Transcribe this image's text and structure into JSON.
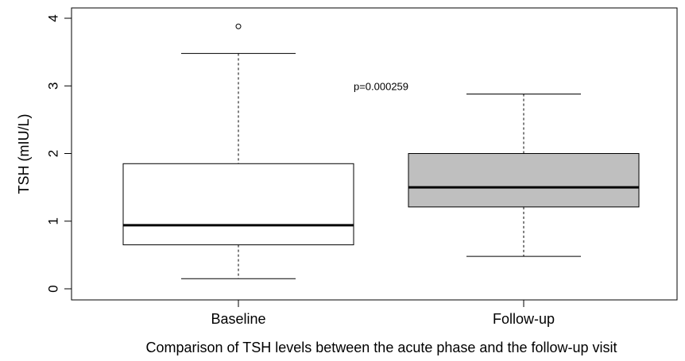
{
  "chart_data": {
    "type": "boxplot",
    "title": "",
    "xlabel": "Comparison of TSH levels between the acute phase and the follow-up visit",
    "ylabel": "TSH (mIU/L)",
    "ylim": [
      0,
      4
    ],
    "yticks": [
      "0",
      "1",
      "2",
      "3",
      "4"
    ],
    "grid": false,
    "annotation": "p=0.000259",
    "annotation_position": {
      "category": 0.5,
      "y": 3.0
    },
    "boxes": [
      {
        "category": "Baseline",
        "whisker_low": 0.15,
        "q1": 0.65,
        "median": 0.94,
        "q3": 1.85,
        "whisker_high": 3.48,
        "outliers": [
          3.88
        ],
        "fill": "#ffffff"
      },
      {
        "category": "Follow-up",
        "whisker_low": 0.48,
        "q1": 1.21,
        "median": 1.5,
        "q3": 2.0,
        "whisker_high": 2.88,
        "outliers": [],
        "fill": "#bfbfbf"
      }
    ]
  }
}
